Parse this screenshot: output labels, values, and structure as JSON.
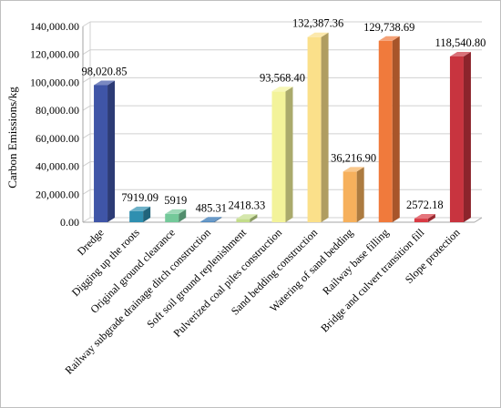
{
  "chart_data": {
    "type": "bar",
    "title": "",
    "xlabel": "",
    "ylabel": "Carbon  Emissions/kg",
    "ylim": [
      0,
      140000
    ],
    "yticks": [
      0,
      20000,
      40000,
      60000,
      80000,
      100000,
      120000,
      140000
    ],
    "ytick_labels": [
      "0.00",
      "20,000.00",
      "40,000.00",
      "60,000.00",
      "80,000.00",
      "100,000.00",
      "120,000.00",
      "140,000.00"
    ],
    "grid": true,
    "legend": "none",
    "categories": [
      "Dredge",
      "Digging up  the roots",
      "Original ground clearance",
      "Railway subgrade drainage ditch construction",
      "Soft soil ground replenishment",
      "Pulverized coal piles construction",
      "Sand bedding construction",
      "Watering of sand bedding",
      "Railway base filling",
      "Bridge and culvert transition fill",
      "Slope protection"
    ],
    "values": [
      98020.85,
      7919.09,
      5919,
      485.31,
      2418.33,
      93568.4,
      132387.36,
      36216.9,
      129738.69,
      2572.18,
      118540.8
    ],
    "data_labels": [
      "98,020.85",
      "7919.09",
      "5919",
      "485.31",
      "2418.33",
      "93,568.40",
      "132,387.36",
      "36,216.90",
      "129,738.69",
      "2572.18",
      "118,540.80"
    ],
    "colors": [
      "#3f55a7",
      "#2f8fb0",
      "#74c99a",
      "#2a6fb0",
      "#c3dc8a",
      "#f3f39a",
      "#fbe08a",
      "#f6b05c",
      "#f07a3c",
      "#d93a44",
      "#c8343f"
    ]
  }
}
